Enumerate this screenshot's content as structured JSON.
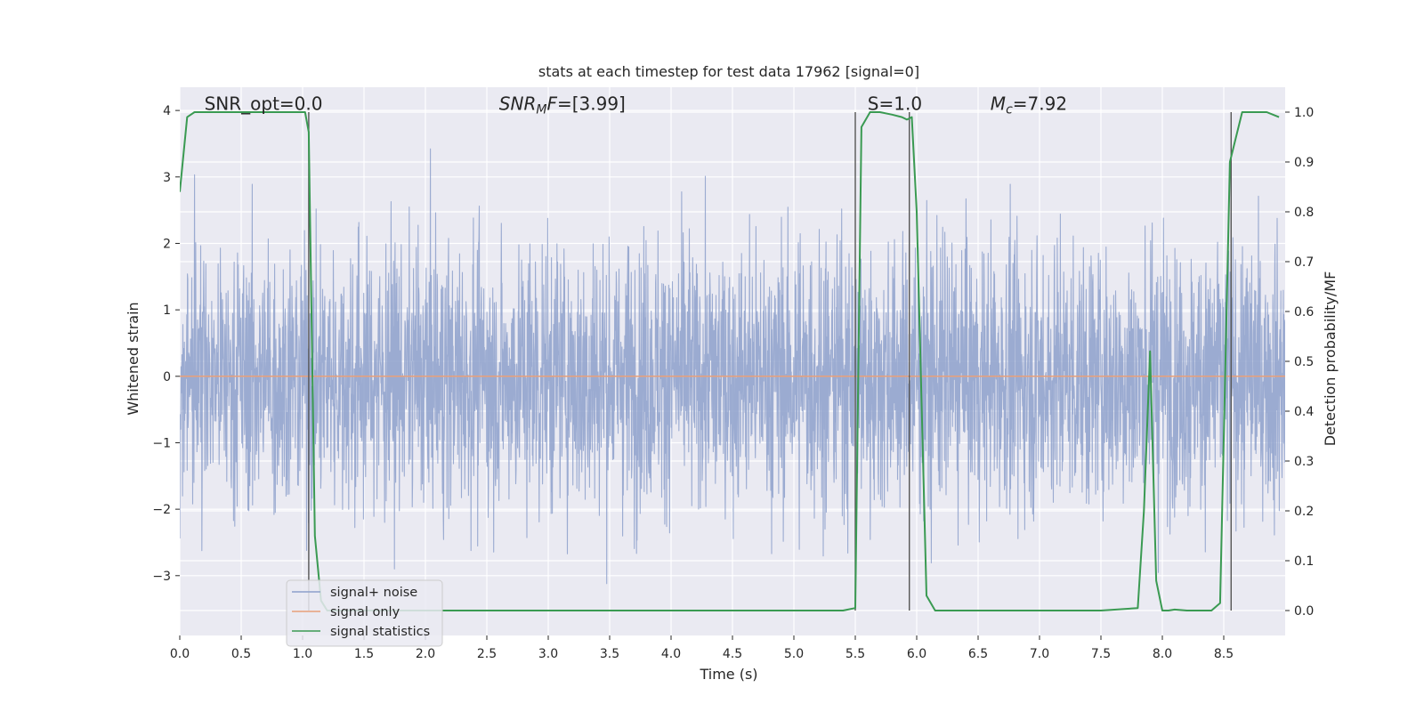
{
  "chart_data": {
    "type": "line",
    "title": "stats at each timestep for test data 17962 [signal=0]",
    "xlabel": "Time (s)",
    "ylabel_left": "Whitened strain",
    "ylabel_right": "Detection probability/MF",
    "xlim": [
      0.0,
      9.0
    ],
    "ylim_left": [
      -3.9,
      4.35
    ],
    "ylim_right": [
      -0.05,
      1.05
    ],
    "x_ticks": [
      0.0,
      0.5,
      1.0,
      1.5,
      2.0,
      2.5,
      3.0,
      3.5,
      4.0,
      4.5,
      5.0,
      5.5,
      6.0,
      6.5,
      7.0,
      7.5,
      8.0,
      8.5
    ],
    "x_tick_labels": [
      "0.0",
      "0.5",
      "1.0",
      "1.5",
      "2.0",
      "2.5",
      "3.0",
      "3.5",
      "4.0",
      "4.5",
      "5.0",
      "5.5",
      "6.0",
      "6.5",
      "7.0",
      "7.5",
      "8.0",
      "8.5"
    ],
    "y_left_ticks": [
      -3,
      -2,
      -1,
      0,
      1,
      2,
      3,
      4
    ],
    "y_left_tick_labels": [
      "−3",
      "−2",
      "−1",
      "0",
      "1",
      "2",
      "3",
      "4"
    ],
    "y_right_ticks": [
      0.0,
      0.1,
      0.2,
      0.3,
      0.4,
      0.5,
      0.6,
      0.7,
      0.8,
      0.9,
      1.0
    ],
    "y_right_tick_labels": [
      "0.0",
      "0.1",
      "0.2",
      "0.3",
      "0.4",
      "0.5",
      "0.6",
      "0.7",
      "0.8",
      "0.9",
      "1.0"
    ],
    "grid": true,
    "legend_placement": "lower-left",
    "annotations": [
      {
        "text": "SNR_opt=0.0",
        "x": 0.2,
        "y": 4.1
      },
      {
        "text": "SNR_MF=[3.99]",
        "x": 2.6,
        "y": 4.1
      },
      {
        "text": "S=1.0",
        "x": 5.6,
        "y": 4.1
      },
      {
        "text": "M_c=7.92",
        "x": 6.6,
        "y": 4.1
      }
    ],
    "series": [
      {
        "name": "signal+ noise",
        "color": "#8da0cb",
        "axis": "left",
        "style": "dense-noise",
        "x_range": [
          0.0,
          9.0
        ],
        "approx_sigma": 1.0,
        "observed_max": 3.8,
        "observed_min": -3.6
      },
      {
        "name": "signal only",
        "color": "#e8a07a",
        "axis": "left",
        "x": [
          0.0,
          9.0
        ],
        "y": [
          0.0,
          0.0
        ]
      },
      {
        "name": "signal statistics",
        "color": "#3a9a52",
        "axis": "right",
        "x": [
          0.0,
          0.06,
          0.12,
          0.2,
          0.4,
          0.6,
          0.8,
          1.0,
          1.02,
          1.05,
          1.1,
          1.15,
          1.2,
          1.5,
          2.0,
          2.5,
          3.0,
          3.5,
          4.0,
          4.5,
          5.0,
          5.4,
          5.5,
          5.55,
          5.62,
          5.7,
          5.8,
          5.88,
          5.92,
          5.96,
          6.0,
          6.08,
          6.15,
          6.5,
          7.0,
          7.5,
          7.8,
          7.85,
          7.9,
          7.95,
          8.0,
          8.05,
          8.1,
          8.2,
          8.3,
          8.4,
          8.47,
          8.55,
          8.65,
          8.75,
          8.85,
          8.95
        ],
        "y": [
          0.84,
          0.99,
          1.0,
          1.0,
          1.0,
          1.0,
          1.0,
          1.0,
          1.0,
          0.96,
          0.15,
          0.02,
          0.0,
          0.0,
          0.0,
          0.0,
          0.0,
          0.0,
          0.0,
          0.0,
          0.0,
          0.0,
          0.005,
          0.97,
          1.0,
          1.0,
          0.995,
          0.99,
          0.985,
          0.99,
          0.8,
          0.03,
          0.0,
          0.0,
          0.0,
          0.0,
          0.005,
          0.2,
          0.52,
          0.06,
          0.0,
          0.0,
          0.002,
          0.0,
          0.0,
          0.0,
          0.015,
          0.9,
          1.0,
          1.0,
          1.0,
          0.99
        ]
      }
    ],
    "vertical_markers": [
      {
        "x": 1.05,
        "y_range": [
          0.0,
          1.0
        ]
      },
      {
        "x": 5.5,
        "y_range": [
          0.0,
          1.0
        ]
      },
      {
        "x": 5.94,
        "y_range": [
          0.0,
          1.0
        ]
      },
      {
        "x": 8.56,
        "y_range": [
          0.0,
          1.0
        ]
      }
    ]
  },
  "colors": {
    "axes_bg": "#eaeaf2",
    "grid": "#ffffff",
    "noise": "#8da0cb",
    "signal_only": "#e8a07a",
    "stats": "#3a9a52",
    "marker": "#555555"
  }
}
